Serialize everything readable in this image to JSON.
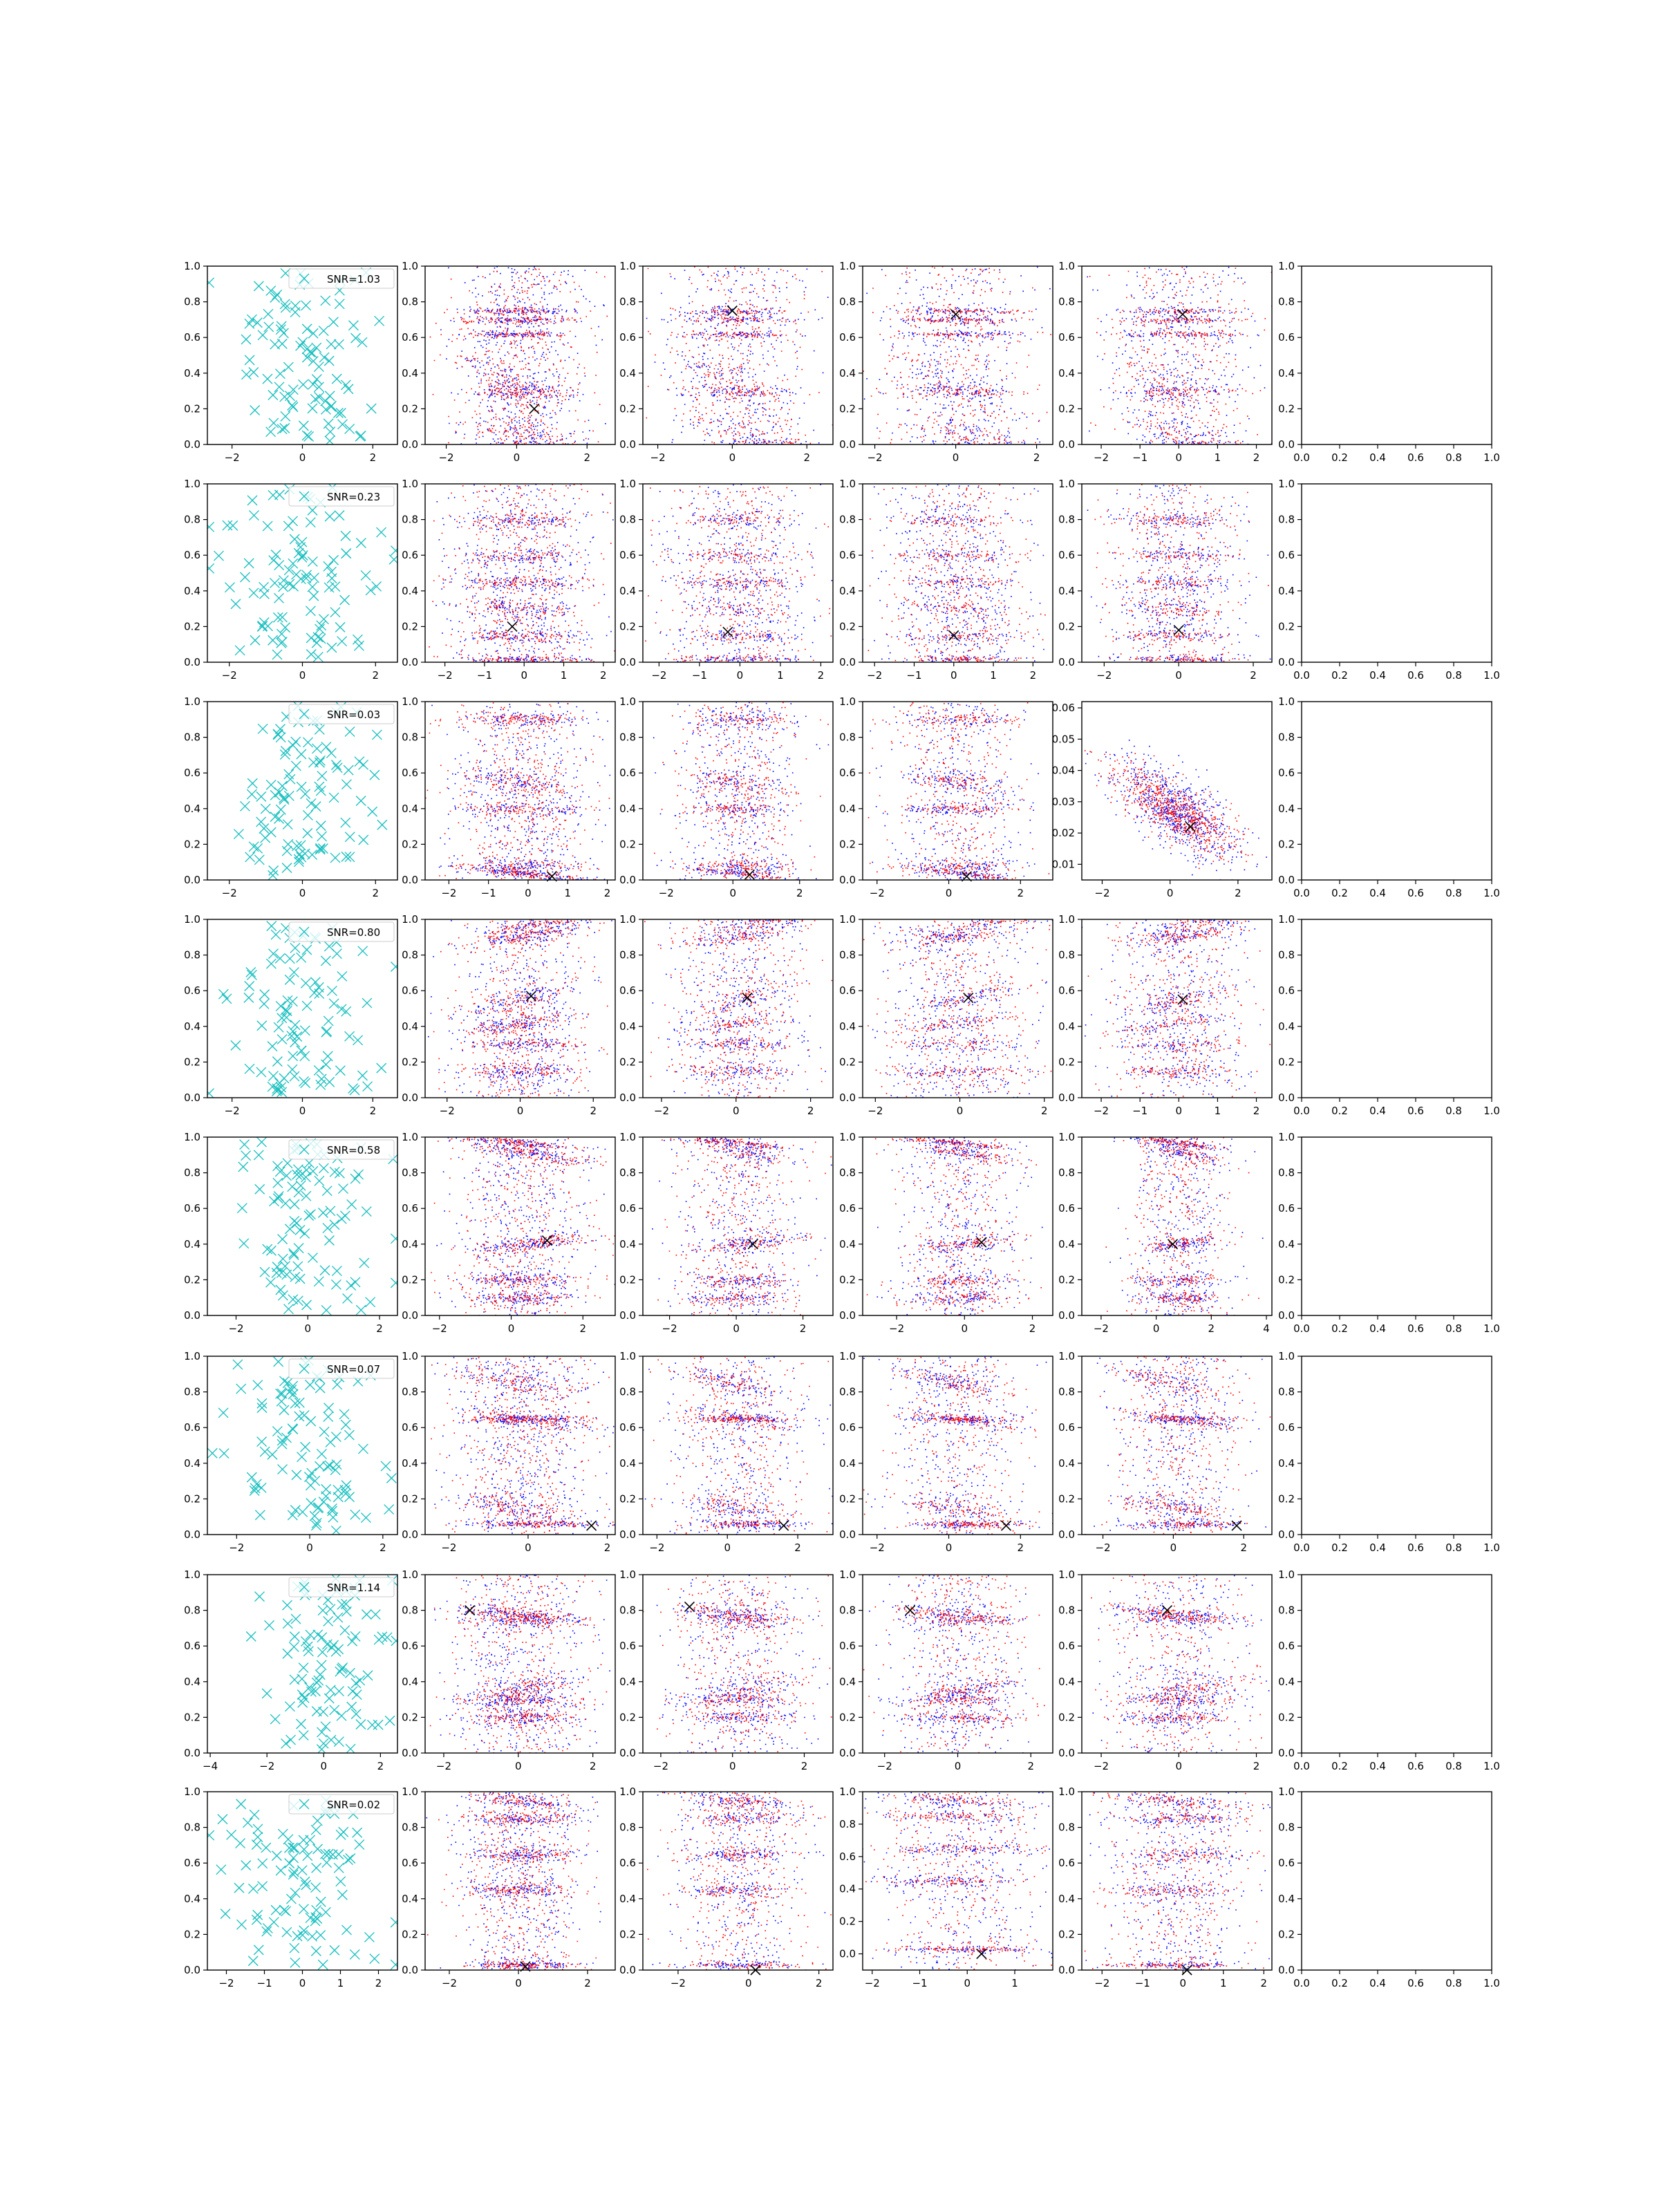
{
  "figure": {
    "description": "8x6 grid of scatter plots",
    "columns": [
      "samples",
      "layer-1",
      "layer-2",
      "layer-3",
      "layer-4",
      "empty"
    ]
  },
  "colors": {
    "cyan": "#17bfbf",
    "blue": "#0000ff",
    "red": "#ff0000",
    "black": "#000000",
    "axis": "#000000"
  },
  "chart_data": [
    {
      "row": 0,
      "type": "scatter",
      "legend": "SNR=1.03",
      "seed": 11,
      "ylim_cols": [
        [
          0,
          1
        ],
        [
          0,
          1
        ],
        [
          0,
          1
        ],
        [
          0,
          1
        ],
        [
          0,
          1
        ]
      ],
      "yticks_cols": [
        [
          "0.0",
          "0.2",
          "0.4",
          "0.6",
          "0.8",
          "1.0"
        ],
        [
          "0.0",
          "0.2",
          "0.4",
          "0.6",
          "0.8",
          "1.0"
        ],
        [
          "0.0",
          "0.2",
          "0.4",
          "0.6",
          "0.8",
          "1.0"
        ],
        [
          "0.0",
          "0.2",
          "0.4",
          "0.6",
          "0.8",
          "1.0"
        ],
        [
          "0.0",
          "0.2",
          "0.4",
          "0.6",
          "0.8",
          "1.0"
        ]
      ],
      "xlim_cols": [
        [
          -2.7,
          2.7
        ],
        [
          -2.6,
          2.8
        ],
        [
          -2.4,
          2.7
        ],
        [
          -2.3,
          2.4
        ],
        [
          -2.5,
          2.4
        ]
      ],
      "xticks_cols": [
        [
          -2,
          0,
          2
        ],
        [
          -2,
          0,
          2
        ],
        [
          -2,
          0,
          2
        ],
        [
          -2,
          0,
          2
        ],
        [
          -2,
          -1,
          0,
          1,
          2
        ]
      ],
      "bands": [
        [
          0.3,
          -1.0,
          -0.12,
          0.06
        ],
        [
          0.05,
          1.0,
          -0.04,
          0.05
        ],
        [
          0.75,
          0.0,
          0.0,
          0.01
        ],
        [
          0.7,
          0.0,
          0.0,
          0.01
        ],
        [
          0.62,
          0.0,
          0.0,
          0.01
        ],
        [
          0.3,
          0.0,
          0.0,
          0.02
        ]
      ],
      "markers": [
        [
          0.5,
          0.2
        ],
        [
          0.0,
          0.75
        ],
        [
          0.0,
          0.73
        ],
        [
          0.1,
          0.73
        ]
      ]
    },
    {
      "row": 1,
      "type": "scatter",
      "legend": "SNR=0.23",
      "seed": 23,
      "ylim_cols": [
        [
          0,
          1
        ],
        [
          0,
          1
        ],
        [
          0,
          1
        ],
        [
          0,
          1
        ],
        [
          0,
          1
        ]
      ],
      "yticks_cols": [
        [
          "0.0",
          "0.2",
          "0.4",
          "0.6",
          "0.8",
          "1.0"
        ],
        [
          "0.0",
          "0.2",
          "0.4",
          "0.6",
          "0.8",
          "1.0"
        ],
        [
          "0.0",
          "0.2",
          "0.4",
          "0.6",
          "0.8",
          "1.0"
        ],
        [
          "0.0",
          "0.2",
          "0.4",
          "0.6",
          "0.8",
          "1.0"
        ],
        [
          "0.0",
          "0.2",
          "0.4",
          "0.6",
          "0.8",
          "1.0"
        ]
      ],
      "xlim_cols": [
        [
          -2.6,
          2.6
        ],
        [
          -2.5,
          2.3
        ],
        [
          -2.4,
          2.3
        ],
        [
          -2.3,
          2.5
        ],
        [
          -2.6,
          2.5
        ]
      ],
      "xticks_cols": [
        [
          -2,
          0,
          2
        ],
        [
          -2,
          -1,
          0,
          1,
          2
        ],
        [
          -2,
          -1,
          0,
          1,
          2
        ],
        [
          -2,
          -1,
          0,
          1,
          2
        ],
        [
          -2,
          0,
          2
        ]
      ],
      "bands": [
        [
          0.8,
          0.0,
          0.0,
          0.02
        ],
        [
          0.3,
          -0.3,
          -0.02,
          0.03
        ],
        [
          0.15,
          0.0,
          0.0,
          0.02
        ],
        [
          0.02,
          0.0,
          0.0,
          0.01
        ],
        [
          0.45,
          0.0,
          0.0,
          0.02
        ],
        [
          0.6,
          0.0,
          0.0,
          0.02
        ]
      ],
      "markers": [
        [
          -0.3,
          0.2
        ],
        [
          -0.3,
          0.17
        ],
        [
          0.0,
          0.15
        ],
        [
          0.0,
          0.18
        ]
      ]
    },
    {
      "row": 2,
      "type": "scatter",
      "legend": "SNR=0.03",
      "seed": 37,
      "ylim_cols": [
        [
          0,
          1
        ],
        [
          0,
          1
        ],
        [
          0,
          1
        ],
        [
          0,
          1
        ],
        [
          0.005,
          0.062
        ]
      ],
      "yticks_cols": [
        [
          "0.0",
          "0.2",
          "0.4",
          "0.6",
          "0.8",
          "1.0"
        ],
        [
          "0.0",
          "0.2",
          "0.4",
          "0.6",
          "0.8",
          "1.0"
        ],
        [
          "0.0",
          "0.2",
          "0.4",
          "0.6",
          "0.8",
          "1.0"
        ],
        [
          "0.0",
          "0.2",
          "0.4",
          "0.6",
          "0.8",
          "1.0"
        ],
        [
          "0.01",
          "0.02",
          "0.03",
          "0.04",
          "0.05",
          "0.06"
        ]
      ],
      "xlim_cols": [
        [
          -2.6,
          2.6
        ],
        [
          -2.6,
          2.2
        ],
        [
          -2.7,
          3.0
        ],
        [
          -2.4,
          2.9
        ],
        [
          -2.6,
          3.0
        ]
      ],
      "xticks_cols": [
        [
          -2,
          0,
          2
        ],
        [
          -2,
          -1,
          0,
          1,
          2
        ],
        [
          -2,
          0,
          2
        ],
        [
          -2,
          0,
          2
        ],
        [
          -2,
          0,
          2
        ]
      ],
      "bands": [
        [
          0.55,
          -0.3,
          -0.03,
          0.03
        ],
        [
          0.08,
          0.0,
          0.0,
          0.02
        ],
        [
          0.9,
          0.0,
          0.0,
          0.02
        ],
        [
          0.4,
          0.0,
          0.0,
          0.02
        ],
        [
          0.04,
          0.5,
          -0.02,
          0.01
        ]
      ],
      "markers": [
        [
          0.6,
          0.02
        ],
        [
          0.5,
          0.03
        ],
        [
          0.5,
          0.02
        ],
        [
          0.6,
          0.022
        ]
      ]
    },
    {
      "row": 3,
      "type": "scatter",
      "legend": "SNR=0.80",
      "seed": 41,
      "ylim_cols": [
        [
          0,
          1
        ],
        [
          0,
          1
        ],
        [
          0,
          1
        ],
        [
          0,
          1
        ],
        [
          0,
          1
        ]
      ],
      "yticks_cols": [
        [
          "0.0",
          "0.2",
          "0.4",
          "0.6",
          "0.8",
          "1.0"
        ],
        [
          "0.0",
          "0.2",
          "0.4",
          "0.6",
          "0.8",
          "1.0"
        ],
        [
          "0.0",
          "0.2",
          "0.4",
          "0.6",
          "0.8",
          "1.0"
        ],
        [
          "0.0",
          "0.2",
          "0.4",
          "0.6",
          "0.8",
          "1.0"
        ],
        [
          "0.0",
          "0.2",
          "0.4",
          "0.6",
          "0.8",
          "1.0"
        ]
      ],
      "xlim_cols": [
        [
          -2.7,
          2.7
        ],
        [
          -2.6,
          2.6
        ],
        [
          -2.5,
          2.6
        ],
        [
          -2.3,
          2.2
        ],
        [
          -2.5,
          2.4
        ]
      ],
      "xticks_cols": [
        [
          -2,
          0,
          2
        ],
        [
          -2,
          0,
          2
        ],
        [
          -2,
          0,
          2
        ],
        [
          -2,
          0,
          2
        ],
        [
          -2,
          -1,
          0,
          1,
          2
        ]
      ],
      "bands": [
        [
          0.95,
          1.0,
          0.05,
          0.03
        ],
        [
          0.55,
          0.3,
          0.05,
          0.03
        ],
        [
          0.9,
          0.5,
          0.03,
          0.02
        ],
        [
          0.42,
          -0.5,
          0.03,
          0.02
        ],
        [
          0.15,
          0.0,
          0.0,
          0.02
        ],
        [
          0.3,
          0.0,
          0.0,
          0.02
        ]
      ],
      "markers": [
        [
          0.3,
          0.57
        ],
        [
          0.3,
          0.56
        ],
        [
          0.2,
          0.56
        ],
        [
          0.1,
          0.55
        ]
      ]
    },
    {
      "row": 4,
      "type": "scatter",
      "legend": "SNR=0.58",
      "seed": 53,
      "ylim_cols": [
        [
          0,
          1
        ],
        [
          0,
          1
        ],
        [
          0,
          1
        ],
        [
          0,
          1
        ],
        [
          0,
          1
        ]
      ],
      "yticks_cols": [
        [
          "0.0",
          "0.2",
          "0.4",
          "0.6",
          "0.8",
          "1.0"
        ],
        [
          "0.0",
          "0.2",
          "0.4",
          "0.6",
          "0.8",
          "1.0"
        ],
        [
          "0.0",
          "0.2",
          "0.4",
          "0.6",
          "0.8",
          "1.0"
        ],
        [
          "0.0",
          "0.2",
          "0.4",
          "0.6",
          "0.8",
          "1.0"
        ],
        [
          "0.0",
          "0.2",
          "0.4",
          "0.6",
          "0.8",
          "1.0"
        ]
      ],
      "xlim_cols": [
        [
          -2.8,
          2.5
        ],
        [
          -2.4,
          2.9
        ],
        [
          -2.8,
          2.9
        ],
        [
          -3.0,
          2.6
        ],
        [
          -2.7,
          4.2
        ]
      ],
      "xticks_cols": [
        [
          -2,
          0,
          2
        ],
        [
          -2,
          0,
          2
        ],
        [
          -2,
          0,
          2
        ],
        [
          -2,
          0,
          2
        ],
        [
          -2,
          0,
          2,
          4
        ]
      ],
      "bands": [
        [
          0.92,
          1.0,
          -0.03,
          0.02
        ],
        [
          0.4,
          1.0,
          0.02,
          0.02
        ],
        [
          0.97,
          0.0,
          -0.02,
          0.01
        ],
        [
          0.1,
          0.0,
          0.0,
          0.02
        ],
        [
          0.2,
          0.0,
          0.0,
          0.02
        ]
      ],
      "markers": [
        [
          1.0,
          0.42
        ],
        [
          0.5,
          0.4
        ],
        [
          0.5,
          0.41
        ],
        [
          0.6,
          0.4
        ]
      ]
    },
    {
      "row": 5,
      "type": "scatter",
      "legend": "SNR=0.07",
      "seed": 67,
      "ylim_cols": [
        [
          0,
          1
        ],
        [
          0,
          1
        ],
        [
          0,
          1
        ],
        [
          0,
          1
        ],
        [
          0,
          1
        ]
      ],
      "yticks_cols": [
        [
          "0.0",
          "0.2",
          "0.4",
          "0.6",
          "0.8",
          "1.0"
        ],
        [
          "0.0",
          "0.2",
          "0.4",
          "0.6",
          "0.8",
          "1.0"
        ],
        [
          "0.0",
          "0.2",
          "0.4",
          "0.6",
          "0.8",
          "1.0"
        ],
        [
          "0.0",
          "0.2",
          "0.4",
          "0.6",
          "0.8",
          "1.0"
        ],
        [
          "0.0",
          "0.2",
          "0.4",
          "0.6",
          "0.8",
          "1.0"
        ]
      ],
      "xlim_cols": [
        [
          -2.8,
          2.4
        ],
        [
          -2.6,
          2.2
        ],
        [
          -2.4,
          3.0
        ],
        [
          -2.4,
          2.9
        ],
        [
          -2.6,
          2.8
        ]
      ],
      "xticks_cols": [
        [
          -2,
          0,
          2
        ],
        [
          -2,
          0,
          2
        ],
        [
          -2,
          0,
          2
        ],
        [
          -2,
          0,
          2
        ],
        [
          -2,
          0,
          2
        ]
      ],
      "bands": [
        [
          0.15,
          -0.5,
          -0.03,
          0.03
        ],
        [
          0.85,
          -1.0,
          -0.04,
          0.03
        ],
        [
          0.65,
          0.5,
          -0.03,
          0.02
        ],
        [
          0.65,
          0.5,
          0.0,
          0.01
        ],
        [
          0.06,
          1.0,
          0.0,
          0.01
        ]
      ],
      "markers": [
        [
          1.6,
          0.05
        ],
        [
          1.6,
          0.05
        ],
        [
          1.6,
          0.05
        ],
        [
          1.8,
          0.05
        ]
      ]
    },
    {
      "row": 6,
      "type": "scatter",
      "legend": "SNR=1.14",
      "seed": 79,
      "ylim_cols": [
        [
          0,
          1
        ],
        [
          0,
          1
        ],
        [
          0,
          1
        ],
        [
          0,
          1
        ],
        [
          0,
          1
        ]
      ],
      "yticks_cols": [
        [
          "0.0",
          "0.2",
          "0.4",
          "0.6",
          "0.8",
          "1.0"
        ],
        [
          "0.0",
          "0.2",
          "0.4",
          "0.6",
          "0.8",
          "1.0"
        ],
        [
          "0.0",
          "0.2",
          "0.4",
          "0.6",
          "0.8",
          "1.0"
        ],
        [
          "0.0",
          "0.2",
          "0.4",
          "0.6",
          "0.8",
          "1.0"
        ],
        [
          "0.0",
          "0.2",
          "0.4",
          "0.6",
          "0.8",
          "1.0"
        ]
      ],
      "xlim_cols": [
        [
          -4.1,
          2.6
        ],
        [
          -2.5,
          2.6
        ],
        [
          -2.5,
          2.8
        ],
        [
          -2.6,
          2.6
        ],
        [
          -2.5,
          2.4
        ]
      ],
      "xticks_cols": [
        [
          -4,
          -2,
          0,
          2
        ],
        [
          -2,
          0,
          2
        ],
        [
          -2,
          0,
          2
        ],
        [
          -2,
          0,
          2
        ],
        [
          -2,
          0,
          2
        ]
      ],
      "bands": [
        [
          0.35,
          1.0,
          0.04,
          0.03
        ],
        [
          0.78,
          -1.0,
          -0.02,
          0.02
        ],
        [
          0.75,
          0.5,
          0.0,
          0.02
        ],
        [
          0.3,
          0.0,
          0.0,
          0.02
        ],
        [
          0.2,
          0.0,
          0.0,
          0.02
        ]
      ],
      "markers": [
        [
          -1.3,
          0.8
        ],
        [
          -1.2,
          0.82
        ],
        [
          -1.3,
          0.8
        ],
        [
          -0.3,
          0.8
        ]
      ]
    },
    {
      "row": 7,
      "type": "scatter",
      "legend": "SNR=0.02",
      "seed": 97,
      "ylim_cols": [
        [
          0,
          1
        ],
        [
          0,
          1
        ],
        [
          0,
          1
        ],
        [
          -0.1,
          1
        ],
        [
          0,
          1
        ]
      ],
      "yticks_cols": [
        [
          "0.0",
          "0.2",
          "0.4",
          "0.6",
          "0.8",
          "1.0"
        ],
        [
          "0.0",
          "0.2",
          "0.4",
          "0.6",
          "0.8",
          "1.0"
        ],
        [
          "0.0",
          "0.2",
          "0.4",
          "0.6",
          "0.8",
          "1.0"
        ],
        [
          "0.0",
          "0.2",
          "0.4",
          "0.6",
          "0.8",
          "1.0"
        ],
        [
          "0.0",
          "0.2",
          "0.4",
          "0.6",
          "0.8",
          "1.0"
        ]
      ],
      "xlim_cols": [
        [
          -2.5,
          2.5
        ],
        [
          -2.7,
          2.8
        ],
        [
          -3.0,
          2.4
        ],
        [
          -2.2,
          1.8
        ],
        [
          -2.5,
          2.2
        ]
      ],
      "xticks_cols": [
        [
          -2,
          -1,
          0,
          1,
          2
        ],
        [
          -2,
          0,
          2
        ],
        [
          -2,
          0,
          2
        ],
        [
          -2,
          -1,
          0,
          1
        ],
        [
          -2,
          -1,
          0,
          1,
          2
        ]
      ],
      "bands": [
        [
          0.03,
          0.0,
          0.0,
          0.01
        ],
        [
          0.95,
          0.0,
          -0.02,
          0.02
        ],
        [
          0.45,
          -0.5,
          0.0,
          0.02
        ],
        [
          0.65,
          0.5,
          0.0,
          0.02
        ],
        [
          0.85,
          0.0,
          0.0,
          0.02
        ]
      ],
      "markers": [
        [
          0.2,
          0.02
        ],
        [
          0.2,
          0.0
        ],
        [
          0.3,
          0.0
        ],
        [
          0.1,
          0.0
        ]
      ]
    }
  ],
  "empty_axis": {
    "xticks": [
      "0.0",
      "0.2",
      "0.4",
      "0.6",
      "0.8",
      "1.0"
    ],
    "yticks": [
      "0.0",
      "0.2",
      "0.4",
      "0.6",
      "0.8",
      "1.0"
    ]
  }
}
